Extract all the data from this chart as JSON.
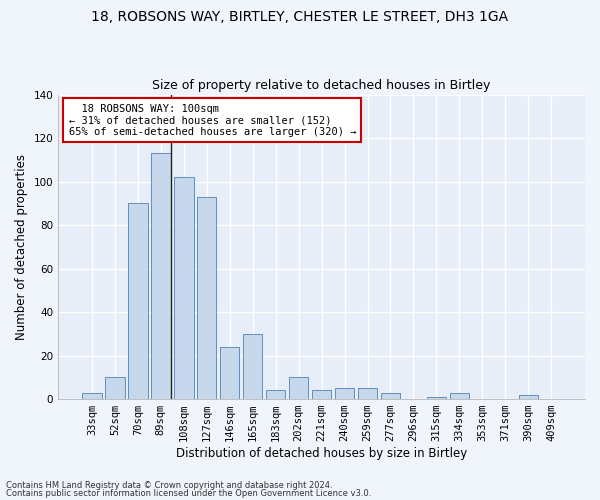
{
  "title1": "18, ROBSONS WAY, BIRTLEY, CHESTER LE STREET, DH3 1GA",
  "title2": "Size of property relative to detached houses in Birtley",
  "xlabel": "Distribution of detached houses by size in Birtley",
  "ylabel": "Number of detached properties",
  "footer1": "Contains HM Land Registry data © Crown copyright and database right 2024.",
  "footer2": "Contains public sector information licensed under the Open Government Licence v3.0.",
  "annotation_line1": "  18 ROBSONS WAY: 100sqm",
  "annotation_line2": "← 31% of detached houses are smaller (152)",
  "annotation_line3": "65% of semi-detached houses are larger (320) →",
  "bar_color": "#c8d8ec",
  "bar_edge_color": "#6090c0",
  "background_color": "#e8eef8",
  "fig_background_color": "#f0f4fb",
  "grid_color": "#ffffff",
  "categories": [
    "33sqm",
    "52sqm",
    "70sqm",
    "89sqm",
    "108sqm",
    "127sqm",
    "146sqm",
    "165sqm",
    "183sqm",
    "202sqm",
    "221sqm",
    "240sqm",
    "259sqm",
    "277sqm",
    "296sqm",
    "315sqm",
    "334sqm",
    "353sqm",
    "371sqm",
    "390sqm",
    "409sqm"
  ],
  "values": [
    3,
    10,
    90,
    113,
    102,
    93,
    24,
    30,
    4,
    10,
    4,
    5,
    5,
    3,
    0,
    1,
    3,
    0,
    0,
    2,
    0
  ],
  "ylim": [
    0,
    140
  ],
  "yticks": [
    0,
    20,
    40,
    60,
    80,
    100,
    120,
    140
  ],
  "annotation_box_color": "#ffffff",
  "annotation_box_edge": "#cc0000",
  "title1_fontsize": 10,
  "title2_fontsize": 9,
  "ylabel_fontsize": 8.5,
  "xlabel_fontsize": 8.5,
  "tick_fontsize": 7.5,
  "annotation_fontsize": 7.5,
  "footer_fontsize": 6
}
